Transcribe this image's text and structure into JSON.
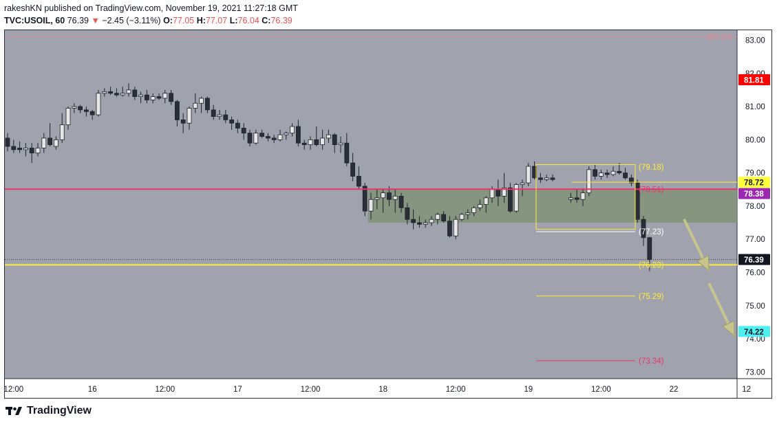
{
  "header": {
    "publish_line": "rakeshKN published on TradingView.com, November 19, 2021 11:27:18 GMT",
    "symbol": "TVC:USOIL, 60",
    "last": "76.39",
    "change_arrow": "▼",
    "change": "−2.45 (−3.11%)",
    "o_label": "O:",
    "o": "77.05",
    "h_label": "H:",
    "h": "77.07",
    "l_label": "L:",
    "l": "76.04",
    "c_label": "C:",
    "c": "76.39"
  },
  "brand": {
    "name": "TradingView",
    "logo_icon": "tradingview-logo-icon"
  },
  "chart_data": {
    "type": "candlestick",
    "y_ticks": [
      "83.00",
      "82.00",
      "81.00",
      "80.00",
      "79.00",
      "78.00",
      "77.00",
      "76.00",
      "75.00",
      "74.00",
      "73.00"
    ],
    "y_range": [
      72.8,
      83.3
    ],
    "x_ticks": [
      {
        "label": "12:00",
        "bar": 1
      },
      {
        "label": "16",
        "bar": 14
      },
      {
        "label": "12:00",
        "bar": 26
      },
      {
        "label": "17",
        "bar": 38
      },
      {
        "label": "12:00",
        "bar": 50
      },
      {
        "label": "18",
        "bar": 62
      },
      {
        "label": "12:00",
        "bar": 74
      },
      {
        "label": "19",
        "bar": 86
      },
      {
        "label": "12:00",
        "bar": 98
      },
      {
        "label": "22",
        "bar": 110
      },
      {
        "label": "12",
        "bar": 122
      }
    ],
    "candles": [
      [
        80.05,
        80.2,
        79.65,
        79.8
      ],
      [
        79.8,
        80.0,
        79.6,
        79.7
      ],
      [
        79.75,
        79.95,
        79.6,
        79.7
      ],
      [
        79.7,
        79.9,
        79.5,
        79.75
      ],
      [
        79.75,
        79.9,
        79.3,
        79.6
      ],
      [
        79.6,
        79.9,
        79.5,
        79.75
      ],
      [
        79.75,
        80.2,
        79.6,
        80.05
      ],
      [
        80.05,
        80.5,
        79.8,
        79.85
      ],
      [
        79.8,
        80.1,
        79.7,
        80.0
      ],
      [
        80.0,
        80.8,
        79.9,
        80.45
      ],
      [
        80.45,
        81.0,
        80.3,
        80.95
      ],
      [
        80.95,
        81.1,
        80.8,
        81.0
      ],
      [
        81.0,
        81.05,
        80.8,
        80.9
      ],
      [
        80.9,
        81.0,
        80.7,
        80.85
      ],
      [
        80.85,
        80.9,
        80.6,
        80.75
      ],
      [
        80.75,
        81.5,
        80.7,
        81.4
      ],
      [
        81.4,
        81.55,
        81.3,
        81.45
      ],
      [
        81.45,
        81.6,
        81.35,
        81.4
      ],
      [
        81.4,
        81.55,
        81.3,
        81.35
      ],
      [
        81.35,
        81.6,
        81.3,
        81.4
      ],
      [
        81.4,
        81.7,
        81.3,
        81.5
      ],
      [
        81.5,
        81.6,
        81.2,
        81.3
      ],
      [
        81.3,
        81.45,
        81.1,
        81.35
      ],
      [
        81.35,
        81.5,
        81.1,
        81.2
      ],
      [
        81.2,
        81.4,
        81.1,
        81.3
      ],
      [
        81.3,
        81.4,
        81.2,
        81.25
      ],
      [
        81.25,
        81.5,
        81.1,
        81.4
      ],
      [
        81.4,
        81.5,
        81.05,
        81.15
      ],
      [
        81.15,
        81.2,
        80.4,
        80.6
      ],
      [
        80.6,
        80.8,
        80.2,
        80.5
      ],
      [
        80.5,
        81.0,
        80.3,
        80.95
      ],
      [
        80.95,
        81.4,
        80.8,
        81.1
      ],
      [
        81.1,
        81.3,
        80.8,
        81.25
      ],
      [
        81.25,
        81.3,
        80.8,
        80.9
      ],
      [
        80.9,
        81.05,
        80.6,
        80.7
      ],
      [
        80.7,
        80.9,
        80.6,
        80.75
      ],
      [
        80.75,
        80.9,
        80.5,
        80.6
      ],
      [
        80.6,
        80.7,
        80.3,
        80.5
      ],
      [
        80.5,
        80.6,
        80.2,
        80.35
      ],
      [
        80.35,
        80.5,
        80.0,
        80.2
      ],
      [
        80.2,
        80.3,
        79.8,
        79.9
      ],
      [
        79.9,
        80.3,
        79.85,
        80.2
      ],
      [
        80.2,
        80.3,
        80.05,
        80.1
      ],
      [
        80.1,
        80.2,
        79.95,
        80.05
      ],
      [
        80.05,
        80.15,
        79.9,
        80.0
      ],
      [
        80.0,
        80.3,
        79.95,
        80.15
      ],
      [
        80.15,
        80.25,
        80.0,
        80.2
      ],
      [
        80.2,
        80.5,
        80.1,
        80.4
      ],
      [
        80.4,
        80.6,
        79.8,
        79.9
      ],
      [
        79.9,
        80.0,
        79.7,
        79.85
      ],
      [
        79.85,
        80.1,
        79.7,
        80.0
      ],
      [
        80.0,
        80.4,
        79.8,
        79.85
      ],
      [
        79.85,
        80.3,
        79.7,
        80.05
      ],
      [
        80.05,
        80.3,
        79.9,
        80.15
      ],
      [
        80.15,
        80.2,
        79.6,
        79.85
      ],
      [
        79.85,
        80.1,
        79.6,
        79.9
      ],
      [
        79.9,
        80.2,
        79.2,
        79.3
      ],
      [
        79.3,
        79.6,
        78.75,
        78.9
      ],
      [
        78.9,
        79.2,
        78.5,
        78.6
      ],
      [
        78.6,
        78.7,
        77.7,
        77.85
      ],
      [
        77.85,
        78.4,
        77.6,
        78.2
      ],
      [
        78.2,
        78.5,
        77.9,
        78.25
      ],
      [
        78.25,
        78.5,
        77.8,
        78.4
      ],
      [
        78.4,
        78.6,
        78.0,
        78.2
      ],
      [
        78.2,
        78.5,
        77.8,
        78.3
      ],
      [
        78.3,
        78.4,
        77.8,
        77.95
      ],
      [
        77.95,
        78.1,
        77.45,
        77.6
      ],
      [
        77.6,
        77.9,
        77.3,
        77.5
      ],
      [
        77.5,
        77.7,
        77.35,
        77.45
      ],
      [
        77.45,
        77.6,
        77.35,
        77.5
      ],
      [
        77.5,
        77.7,
        77.4,
        77.6
      ],
      [
        77.6,
        77.8,
        77.45,
        77.75
      ],
      [
        77.75,
        77.85,
        77.5,
        77.55
      ],
      [
        77.55,
        77.7,
        77.05,
        77.1
      ],
      [
        77.1,
        77.7,
        77.0,
        77.6
      ],
      [
        77.6,
        77.8,
        77.55,
        77.75
      ],
      [
        77.75,
        77.9,
        77.6,
        77.8
      ],
      [
        77.8,
        78.0,
        77.7,
        77.95
      ],
      [
        77.95,
        78.2,
        77.85,
        78.05
      ],
      [
        78.05,
        78.3,
        77.8,
        78.25
      ],
      [
        78.25,
        78.6,
        78.1,
        78.5
      ],
      [
        78.5,
        78.8,
        78.0,
        78.3
      ],
      [
        78.3,
        79.0,
        78.1,
        78.55
      ],
      [
        78.55,
        78.7,
        77.8,
        77.85
      ],
      [
        77.85,
        78.7,
        77.8,
        78.65
      ],
      [
        78.65,
        78.8,
        78.3,
        78.7
      ],
      [
        78.7,
        79.3,
        78.6,
        79.2
      ],
      [
        79.2,
        79.35,
        78.8,
        78.85
      ],
      [
        78.85,
        79.0,
        78.7,
        78.8
      ],
      [
        78.8,
        78.95,
        78.75,
        78.85
      ],
      [
        78.85,
        78.95,
        78.75,
        78.8
      ],
      null,
      null,
      [
        78.2,
        78.4,
        78.1,
        78.25
      ],
      [
        78.25,
        78.5,
        78.1,
        78.2
      ],
      [
        78.2,
        78.5,
        78.0,
        78.4
      ],
      [
        78.4,
        79.2,
        78.3,
        79.1
      ],
      [
        79.1,
        79.25,
        78.8,
        78.9
      ],
      [
        78.9,
        79.1,
        78.8,
        79.0
      ],
      [
        79.0,
        79.1,
        78.85,
        78.95
      ],
      [
        78.95,
        79.2,
        78.9,
        79.05
      ],
      [
        79.05,
        79.3,
        78.95,
        79.0
      ],
      [
        79.0,
        79.15,
        78.8,
        78.85
      ],
      [
        78.85,
        78.95,
        78.6,
        78.7
      ],
      [
        78.7,
        78.8,
        77.5,
        77.6
      ],
      [
        77.6,
        77.7,
        76.8,
        77.05
      ],
      [
        77.05,
        77.07,
        76.04,
        76.39
      ]
    ]
  },
  "price_levels": {
    "top_line": {
      "price": 83.1,
      "color": "#d98a96"
    },
    "red_line": {
      "price": 78.51,
      "color": "#e8346a"
    },
    "yellow_line": {
      "price": 76.23,
      "color": "#ffeb3b"
    },
    "last_price_line": {
      "price": 76.39
    }
  },
  "zones": {
    "green_zone": {
      "top": 78.51,
      "bottom": 77.5,
      "fill": "#7d9070"
    },
    "yellow_box": {
      "top": 79.25,
      "bottom": 77.3
    },
    "yellow_line_78_72": {
      "price": 78.72
    },
    "white_line_77_23": {
      "price": 77.23
    },
    "line_75_29": {
      "price": 75.29
    },
    "line_73_34": {
      "price": 73.34
    }
  },
  "annotations": [
    {
      "text": "(83.10)",
      "price": 83.1,
      "color": "#d98a96"
    },
    {
      "text": "(79.18)",
      "price": 79.18,
      "color": "#ffeb3b"
    },
    {
      "text": "(78.51)",
      "price": 78.51,
      "color": "#e8346a"
    },
    {
      "text": "(77.23)",
      "price": 77.23,
      "color": "#ffffff"
    },
    {
      "text": "(76.23)",
      "price": 76.23,
      "color": "#ffeb3b"
    },
    {
      "text": "(75.29)",
      "price": 75.29,
      "color": "#ffeb3b"
    },
    {
      "text": "(73.34)",
      "price": 73.34,
      "color": "#e8346a"
    }
  ],
  "price_tags": [
    {
      "text": "81.81",
      "price": 81.81,
      "bg": "#ff0000",
      "fg": "#ffffff"
    },
    {
      "text": "78.72",
      "price": 78.72,
      "bg": "#ffff3b",
      "fg": "#131722"
    },
    {
      "text": "78.38",
      "price": 78.38,
      "bg": "#9c27b0",
      "fg": "#ffffff"
    },
    {
      "text": "76.39",
      "price": 76.39,
      "bg": "#131722",
      "fg": "#ffffff"
    },
    {
      "text": "74.22",
      "price": 74.22,
      "bg": "#4ef0f0",
      "fg": "#131722"
    }
  ],
  "colors": {
    "background": "#a0a3ad",
    "candle_up": "#e6e6e6",
    "candle_down": "#2a2e39",
    "arrow": "#c8c48e"
  }
}
